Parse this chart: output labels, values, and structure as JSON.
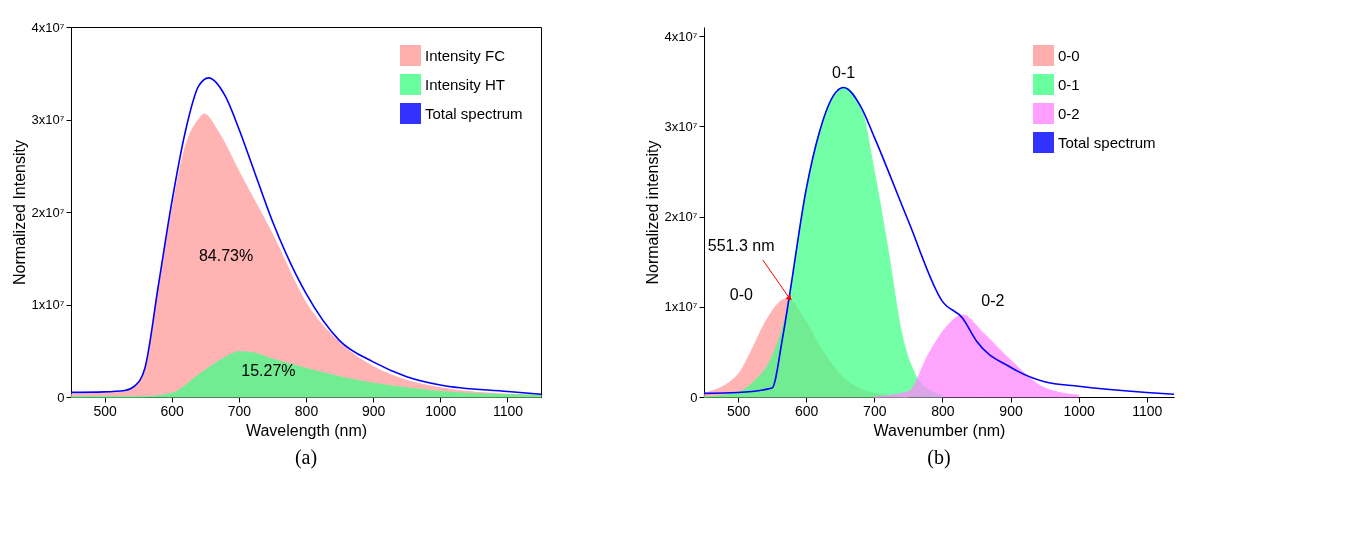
{
  "chart_data": [
    {
      "type": "area",
      "title": "(a)",
      "xlabel": "Wavelength (nm)",
      "ylabel": "Normalized Intensity",
      "legend": "top right",
      "grid": false,
      "xlim": [
        450,
        1150
      ],
      "xticks": [
        500,
        600,
        700,
        800,
        900,
        1000,
        1100
      ],
      "ylim": [
        0,
        40000000
      ],
      "yticks": [
        0,
        {
          "value": 10000000,
          "label": "1x10⁷"
        },
        {
          "value": 20000000,
          "label": "2x10⁷"
        },
        {
          "value": 30000000,
          "label": "3x10⁷"
        },
        {
          "value": 40000000,
          "label": "4x10⁷"
        }
      ],
      "series": [
        {
          "name": "Intensity FC",
          "color": "#ff9a9a",
          "x": [
            450,
            500,
            530,
            545,
            560,
            580,
            600,
            620,
            640,
            648,
            670,
            700,
            750,
            800,
            850,
            900,
            950,
            1000,
            1100,
            1150
          ],
          "values": [
            300000,
            400000,
            600000,
            1200000,
            3000000,
            11500000,
            20000000,
            27000000,
            30000000,
            30600000,
            28600000,
            24400000,
            17600000,
            10200000,
            5900000,
            3300000,
            1800000,
            1000000,
            300000,
            200000
          ]
        },
        {
          "name": "Intensity HT",
          "color": "#44ff88",
          "x": [
            450,
            550,
            600,
            640,
            680,
            700,
            720,
            750,
            800,
            850,
            900,
            950,
            1000,
            1100,
            1150
          ],
          "values": [
            0,
            0,
            400000,
            2400000,
            4300000,
            4900000,
            4800000,
            4100000,
            3100000,
            2200000,
            1500000,
            1000000,
            600000,
            250000,
            200000
          ]
        },
        {
          "name": "Total spectrum",
          "type": "line",
          "color": "#0000ff",
          "x": [
            450,
            500,
            530,
            545,
            560,
            580,
            600,
            620,
            640,
            655,
            680,
            700,
            720,
            750,
            800,
            850,
            900,
            950,
            1000,
            1100,
            1150
          ],
          "values": [
            500000,
            550000,
            700000,
            1200000,
            3100000,
            12000000,
            21000000,
            28600000,
            33600000,
            34500000,
            32500000,
            29000000,
            25000000,
            19000000,
            11200000,
            6100000,
            3800000,
            2200000,
            1300000,
            600000,
            300000
          ]
        }
      ],
      "annotations": [
        "84.73%",
        "15.27%"
      ]
    },
    {
      "type": "area",
      "title": "(b)",
      "xlabel": "Wavenumber (nm)",
      "ylabel": "Normalized intensity",
      "legend": "top right",
      "grid": false,
      "xlim": [
        450,
        1140
      ],
      "xticks": [
        500,
        600,
        700,
        800,
        900,
        1000,
        1100
      ],
      "ylim": [
        0,
        41000000
      ],
      "yticks": [
        0,
        {
          "value": 10000000,
          "label": "1x10⁷"
        },
        {
          "value": 20000000,
          "label": "2x10⁷"
        },
        {
          "value": 30000000,
          "label": "3x10⁷"
        },
        {
          "value": 40000000,
          "label": "4x10⁷"
        }
      ],
      "series": [
        {
          "name": "0-0",
          "color": "#ff9a9a",
          "x": [
            450,
            500,
            520,
            540,
            571,
            600,
            620,
            650,
            700,
            750
          ],
          "values": [
            400000,
            2500000,
            5200000,
            8300000,
            10900000,
            8300000,
            5600000,
            2500000,
            400000,
            0
          ]
        },
        {
          "name": "0-1",
          "color": "#44ff88",
          "x": [
            450,
            500,
            520,
            550,
            570,
            600,
            620,
            640,
            655,
            680,
            700,
            720,
            740,
            760,
            780,
            800
          ],
          "values": [
            0,
            500000,
            1500000,
            4500000,
            9000000,
            23000000,
            29500000,
            33400000,
            34300000,
            32200000,
            25000000,
            16400000,
            7100000,
            2500000,
            800000,
            200000
          ]
        },
        {
          "name": "0-2",
          "color": "#ff88ff",
          "x": [
            700,
            750,
            780,
            800,
            830,
            860,
            900,
            950,
            1000
          ],
          "values": [
            0,
            600000,
            4800000,
            7200000,
            9100000,
            7100000,
            4100000,
            1000000,
            200000
          ]
        },
        {
          "name": "Total spectrum",
          "type": "line",
          "color": "#0000ff",
          "x": [
            450,
            500,
            550,
            565,
            575,
            600,
            620,
            640,
            655,
            680,
            700,
            750,
            800,
            830,
            850,
            900,
            950,
            1000,
            1100,
            1140
          ],
          "values": [
            400000,
            500000,
            1000000,
            6400000,
            11000000,
            23000000,
            29500000,
            33400000,
            34300000,
            32200000,
            28800000,
            19500000,
            10600000,
            8700000,
            6200000,
            3300000,
            1700000,
            1200000,
            500000,
            300000
          ]
        }
      ],
      "annotations": [
        {
          "text": "0-1",
          "x": 655,
          "y": 34300000
        },
        {
          "text": "0-0",
          "x": 571,
          "y": 10900000
        },
        {
          "text": "0-2",
          "x": 830,
          "y": 9100000
        },
        {
          "text": "551.3 nm",
          "x": 575,
          "y": 11000000
        }
      ]
    }
  ]
}
